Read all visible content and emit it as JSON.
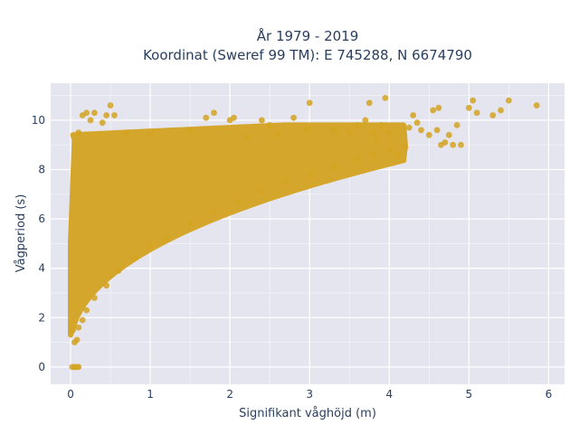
{
  "chart_data": {
    "type": "scatter",
    "title_line1": "År 1979 - 2019",
    "title_line2": "Koordinat (Sweref 99 TM): E 745288, N 6674790",
    "xlabel": "Signifikant våghöjd (m)",
    "ylabel": "Vågperiod (s)",
    "xlim": [
      -0.25,
      6.2
    ],
    "ylim": [
      -0.7,
      11.5
    ],
    "xticks": [
      0,
      1,
      2,
      3,
      4,
      5,
      6
    ],
    "yticks": [
      0,
      2,
      4,
      6,
      8,
      10
    ],
    "grid": true,
    "colors": {
      "marker": "#d4a321",
      "plot_bg": "#e5e5f0",
      "grid": "#ffffff",
      "text": "#2a3f5f"
    },
    "series": [
      {
        "points": [
          [
            0.02,
            0
          ],
          [
            0.05,
            0
          ],
          [
            0.08,
            0
          ],
          [
            0.1,
            0
          ],
          [
            0.05,
            1.0
          ],
          [
            0.08,
            1.1
          ],
          [
            0.03,
            1.5
          ],
          [
            0.1,
            1.6
          ],
          [
            0.15,
            1.9
          ],
          [
            0.2,
            2.3
          ],
          [
            0.3,
            2.8
          ],
          [
            0.45,
            3.3
          ],
          [
            0.6,
            3.9
          ],
          [
            0.8,
            4.4
          ],
          [
            1.0,
            4.9
          ],
          [
            1.2,
            5.2
          ],
          [
            1.5,
            5.8
          ],
          [
            1.8,
            6.3
          ],
          [
            2.1,
            6.7
          ],
          [
            2.4,
            7.1
          ],
          [
            2.7,
            7.5
          ],
          [
            3.0,
            7.8
          ],
          [
            3.3,
            8.1
          ],
          [
            3.6,
            8.4
          ],
          [
            3.8,
            8.6
          ],
          [
            4.0,
            8.8
          ],
          [
            0.1,
            9.5
          ],
          [
            0.15,
            10.2
          ],
          [
            0.2,
            10.3
          ],
          [
            0.25,
            10.0
          ],
          [
            0.3,
            10.3
          ],
          [
            0.4,
            9.9
          ],
          [
            0.45,
            10.2
          ],
          [
            0.5,
            10.6
          ],
          [
            0.55,
            10.2
          ],
          [
            0.7,
            9.5
          ],
          [
            1.0,
            9.4
          ],
          [
            1.5,
            9.6
          ],
          [
            1.7,
            10.1
          ],
          [
            1.8,
            10.3
          ],
          [
            2.0,
            10.0
          ],
          [
            2.05,
            10.1
          ],
          [
            2.2,
            9.3
          ],
          [
            2.4,
            10.0
          ],
          [
            2.5,
            9.8
          ],
          [
            2.6,
            9.4
          ],
          [
            2.8,
            10.1
          ],
          [
            2.95,
            9.6
          ],
          [
            3.0,
            10.7
          ],
          [
            3.3,
            9.6
          ],
          [
            3.5,
            9.5
          ],
          [
            3.6,
            9.8
          ],
          [
            3.7,
            10.0
          ],
          [
            3.75,
            10.7
          ],
          [
            3.8,
            9.5
          ],
          [
            3.85,
            9.2
          ],
          [
            3.9,
            9.8
          ],
          [
            3.95,
            10.9
          ],
          [
            4.0,
            9.5
          ],
          [
            4.1,
            8.6
          ],
          [
            4.2,
            8.9
          ],
          [
            4.25,
            9.7
          ],
          [
            4.3,
            10.2
          ],
          [
            4.35,
            9.9
          ],
          [
            4.4,
            9.6
          ],
          [
            4.5,
            9.4
          ],
          [
            4.55,
            10.4
          ],
          [
            4.6,
            9.6
          ],
          [
            4.62,
            10.5
          ],
          [
            4.65,
            9.0
          ],
          [
            4.7,
            9.1
          ],
          [
            4.75,
            9.4
          ],
          [
            4.8,
            9.0
          ],
          [
            4.85,
            9.8
          ],
          [
            4.9,
            9.0
          ],
          [
            5.0,
            10.5
          ],
          [
            5.05,
            10.8
          ],
          [
            5.1,
            10.3
          ],
          [
            5.3,
            10.2
          ],
          [
            5.4,
            10.4
          ],
          [
            5.5,
            10.8
          ],
          [
            5.85,
            10.6
          ]
        ]
      }
    ]
  }
}
